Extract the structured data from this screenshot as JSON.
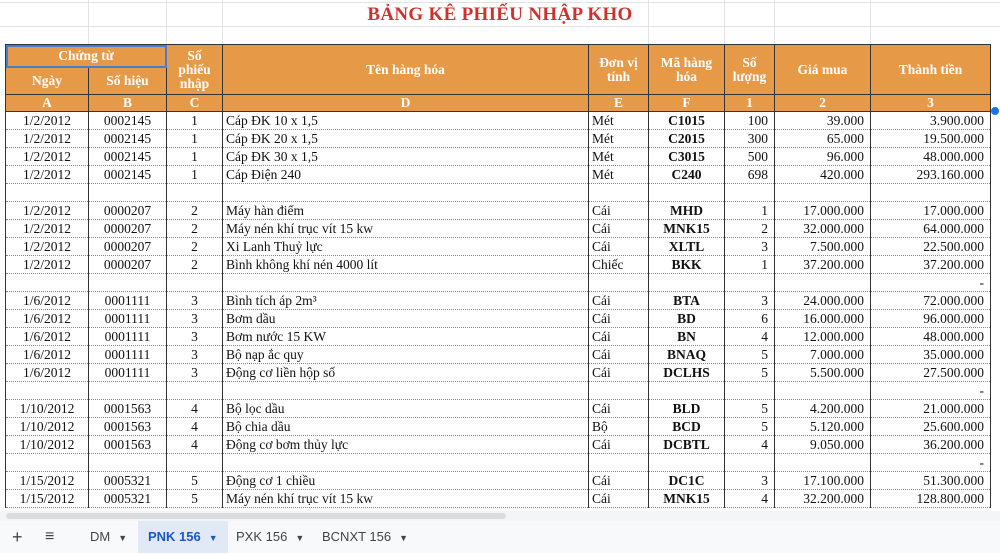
{
  "title": "BẢNG KÊ PHIẾU NHẬP KHO",
  "headers": {
    "chung_tu": "Chứng từ",
    "ngay": "Ngày",
    "so_hieu": "Số hiệu",
    "so_phieu_nhap": "Số phiếu nhập",
    "ten_hang_hoa": "Tên hàng hóa",
    "don_vi_tinh": "Đơn vị tính",
    "ma_hang_hoa": "Mã hàng hóa",
    "so_luong": "Số lượng",
    "gia_mua": "Giá mua",
    "thanh_tien": "Thành tiền"
  },
  "letters": [
    "A",
    "B",
    "C",
    "D",
    "E",
    "F",
    "1",
    "2",
    "3"
  ],
  "rows": [
    [
      "1/2/2012",
      "0002145",
      "1",
      "Cáp ĐK 10 x 1,5",
      "Mét",
      "C1015",
      "100",
      "39.000",
      "3.900.000"
    ],
    [
      "1/2/2012",
      "0002145",
      "1",
      "Cáp ĐK 20 x 1,5",
      "Mét",
      "C2015",
      "300",
      "65.000",
      "19.500.000"
    ],
    [
      "1/2/2012",
      "0002145",
      "1",
      "Cáp ĐK 30 x 1,5",
      "Mét",
      "C3015",
      "500",
      "96.000",
      "48.000.000"
    ],
    [
      "1/2/2012",
      "0002145",
      "1",
      "Cáp Điện 240",
      "Mét",
      "C240",
      "698",
      "420.000",
      "293.160.000"
    ],
    [
      "",
      "",
      "",
      "",
      "",
      "",
      "",
      "",
      ""
    ],
    [
      "1/2/2012",
      "0000207",
      "2",
      " Máy hàn điểm",
      "Cái",
      "MHD",
      "1",
      "17.000.000",
      "17.000.000"
    ],
    [
      "1/2/2012",
      "0000207",
      "2",
      "Máy nén khí trục vít 15 kw",
      "Cái",
      "MNK15",
      "2",
      "32.000.000",
      "64.000.000"
    ],
    [
      "1/2/2012",
      "0000207",
      "2",
      "Xi Lanh Thuỷ lực",
      "Cái",
      "XLTL",
      "3",
      "7.500.000",
      "22.500.000"
    ],
    [
      "1/2/2012",
      "0000207",
      "2",
      "Bình không khí nén 4000 lít",
      "Chiếc",
      "BKK",
      "1",
      "37.200.000",
      "37.200.000"
    ],
    [
      "",
      "",
      "",
      "",
      "",
      "",
      "",
      "",
      "-"
    ],
    [
      "1/6/2012",
      "0001111",
      "3",
      "Bình tích áp 2m³",
      "Cái",
      "BTA",
      "3",
      "24.000.000",
      "72.000.000"
    ],
    [
      "1/6/2012",
      "0001111",
      "3",
      " Bơm dầu",
      "Cái",
      "BD",
      "6",
      "16.000.000",
      "96.000.000"
    ],
    [
      "1/6/2012",
      "0001111",
      "3",
      "Bơm nước 15 KW",
      "Cái",
      "BN",
      "4",
      "12.000.000",
      "48.000.000"
    ],
    [
      "1/6/2012",
      "0001111",
      "3",
      " Bộ nạp ắc quy",
      "Cái",
      "BNAQ",
      "5",
      "7.000.000",
      "35.000.000"
    ],
    [
      "1/6/2012",
      "0001111",
      "3",
      "Động cơ liền hộp số",
      "Cái",
      "DCLHS",
      "5",
      "5.500.000",
      "27.500.000"
    ],
    [
      "",
      "",
      "",
      "",
      "",
      "",
      "",
      "",
      "-"
    ],
    [
      "1/10/2012",
      "0001563",
      "4",
      " Bộ lọc dầu",
      "Cái",
      "BLD",
      "5",
      "4.200.000",
      "21.000.000"
    ],
    [
      "1/10/2012",
      "0001563",
      "4",
      " Bộ chia dầu",
      "Bộ",
      "BCD",
      "5",
      "5.120.000",
      "25.600.000"
    ],
    [
      "1/10/2012",
      "0001563",
      "4",
      "Động cơ bơm thủy lực",
      "Cái",
      "DCBTL",
      "4",
      "9.050.000",
      "36.200.000"
    ],
    [
      "",
      "",
      "",
      "",
      "",
      "",
      "",
      "",
      "-"
    ],
    [
      "1/15/2012",
      "0005321",
      "5",
      " Động cơ 1 chiều",
      "Cái",
      "DC1C",
      "3",
      "17.100.000",
      "51.300.000"
    ],
    [
      "1/15/2012",
      "0005321",
      "5",
      "Máy nén khí trục vít 15 kw",
      "Cái",
      "MNK15",
      "4",
      "32.200.000",
      "128.800.000"
    ]
  ],
  "sheet_tabs": [
    {
      "label": "DM",
      "active": false
    },
    {
      "label": "PNK 156",
      "active": true
    },
    {
      "label": "PXK 156",
      "active": false
    },
    {
      "label": "BCNXT 156",
      "active": false
    }
  ],
  "icons": {
    "add_sheet": "plus-icon",
    "all_sheets": "menu-icon",
    "tab_menu": "caret-down-icon"
  },
  "colors": {
    "header_bg": "#e69a48",
    "title": "#d0312d",
    "active_tab": "#1a56c4"
  }
}
